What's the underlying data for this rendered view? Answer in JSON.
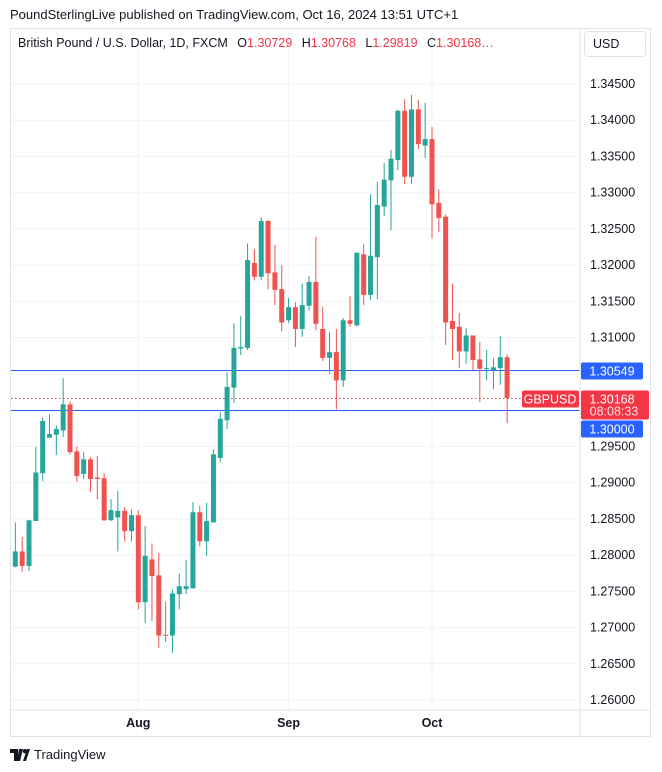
{
  "publisher_line": "PoundSterlingLive published on TradingView.com, Oct 16, 2024 13:51 UTC+1",
  "legend": {
    "title": "British Pound / U.S. Dollar, 1D, FXCM",
    "o_label": "O",
    "o_value": "1.30729",
    "h_label": "H",
    "h_value": "1.30768",
    "l_label": "L",
    "l_value": "1.29819",
    "c_label": "C",
    "c_value": "1.30168…"
  },
  "currency_button": "USD",
  "brand": "TradingView",
  "colors": {
    "up": "#26a69a",
    "down": "#ef5350",
    "line": "#2962ff",
    "grid": "#f0f3fa",
    "text": "#131722"
  },
  "chart_data": {
    "type": "candlestick",
    "symbol": "GBPUSD",
    "interval": "1D",
    "ylim": [
      1.2575,
      1.3485
    ],
    "grid": true,
    "y_ticks": [
      "1.34500",
      "1.34000",
      "1.33500",
      "1.33000",
      "1.32500",
      "1.32000",
      "1.31500",
      "1.31000",
      "1.29500",
      "1.29000",
      "1.28500",
      "1.28000",
      "1.27500",
      "1.27000",
      "1.26500",
      "1.26000"
    ],
    "x_ticks": [
      {
        "label": "Aug",
        "date": "2024-08-01"
      },
      {
        "label": "Sep",
        "date": "2024-09-02"
      },
      {
        "label": "Oct",
        "date": "2024-10-01"
      }
    ],
    "horizontal_lines": [
      {
        "price": 1.30549,
        "label": "1.30549",
        "color": "#2962ff"
      },
      {
        "price": 1.3,
        "label": "1.30000",
        "color": "#2962ff"
      }
    ],
    "last_price": {
      "price": 1.30168,
      "label": "1.30168",
      "countdown": "08:08:33",
      "symbol_tag": "GBPUSD",
      "color": "#f23645"
    },
    "candles": [
      {
        "date": "2024-07-05",
        "o": 1.2757,
        "h": 1.2811,
        "l": 1.2757,
        "c": 1.2811
      },
      {
        "date": "2024-07-08",
        "o": 1.2784,
        "h": 1.2845,
        "l": 1.2783,
        "c": 1.2805
      },
      {
        "date": "2024-07-09",
        "o": 1.2805,
        "h": 1.2825,
        "l": 1.2777,
        "c": 1.2785
      },
      {
        "date": "2024-07-10",
        "o": 1.2785,
        "h": 1.2848,
        "l": 1.2778,
        "c": 1.2848
      },
      {
        "date": "2024-07-11",
        "o": 1.2847,
        "h": 1.2949,
        "l": 1.2847,
        "c": 1.2914
      },
      {
        "date": "2024-07-12",
        "o": 1.2913,
        "h": 1.299,
        "l": 1.2902,
        "c": 1.2985
      },
      {
        "date": "2024-07-15",
        "o": 1.2962,
        "h": 1.2994,
        "l": 1.2962,
        "c": 1.2967
      },
      {
        "date": "2024-07-16",
        "o": 1.2966,
        "h": 1.2979,
        "l": 1.2938,
        "c": 1.2974
      },
      {
        "date": "2024-07-17",
        "o": 1.2972,
        "h": 1.3044,
        "l": 1.2963,
        "c": 1.3008
      },
      {
        "date": "2024-07-18",
        "o": 1.3008,
        "h": 1.3012,
        "l": 1.2939,
        "c": 1.2942
      },
      {
        "date": "2024-07-19",
        "o": 1.2943,
        "h": 1.295,
        "l": 1.2901,
        "c": 1.2909
      },
      {
        "date": "2024-07-22",
        "o": 1.2912,
        "h": 1.2942,
        "l": 1.2905,
        "c": 1.2932
      },
      {
        "date": "2024-07-23",
        "o": 1.2932,
        "h": 1.2935,
        "l": 1.2887,
        "c": 1.2905
      },
      {
        "date": "2024-07-24",
        "o": 1.2907,
        "h": 1.2937,
        "l": 1.2877,
        "c": 1.2905
      },
      {
        "date": "2024-07-25",
        "o": 1.2906,
        "h": 1.2913,
        "l": 1.2847,
        "c": 1.2848
      },
      {
        "date": "2024-07-26",
        "o": 1.2848,
        "h": 1.2877,
        "l": 1.2847,
        "c": 1.2862
      },
      {
        "date": "2024-07-29",
        "o": 1.2852,
        "h": 1.2888,
        "l": 1.2805,
        "c": 1.2861
      },
      {
        "date": "2024-07-30",
        "o": 1.2861,
        "h": 1.2866,
        "l": 1.2819,
        "c": 1.2833
      },
      {
        "date": "2024-07-31",
        "o": 1.2833,
        "h": 1.2863,
        "l": 1.2819,
        "c": 1.2855
      },
      {
        "date": "2024-08-01",
        "o": 1.2855,
        "h": 1.2862,
        "l": 1.2725,
        "c": 1.2735
      },
      {
        "date": "2024-08-02",
        "o": 1.2735,
        "h": 1.284,
        "l": 1.2706,
        "c": 1.2799
      },
      {
        "date": "2024-08-05",
        "o": 1.2794,
        "h": 1.2816,
        "l": 1.2709,
        "c": 1.2771
      },
      {
        "date": "2024-08-06",
        "o": 1.2772,
        "h": 1.2803,
        "l": 1.2672,
        "c": 1.2689
      },
      {
        "date": "2024-08-07",
        "o": 1.269,
        "h": 1.2736,
        "l": 1.268,
        "c": 1.2689
      },
      {
        "date": "2024-08-08",
        "o": 1.2689,
        "h": 1.2752,
        "l": 1.2665,
        "c": 1.2747
      },
      {
        "date": "2024-08-09",
        "o": 1.2746,
        "h": 1.2774,
        "l": 1.2725,
        "c": 1.2757
      },
      {
        "date": "2024-08-12",
        "o": 1.2753,
        "h": 1.2793,
        "l": 1.2746,
        "c": 1.2757
      },
      {
        "date": "2024-08-13",
        "o": 1.2754,
        "h": 1.2873,
        "l": 1.2754,
        "c": 1.2859
      },
      {
        "date": "2024-08-14",
        "o": 1.2859,
        "h": 1.2868,
        "l": 1.2812,
        "c": 1.2819
      },
      {
        "date": "2024-08-15",
        "o": 1.2819,
        "h": 1.2872,
        "l": 1.2799,
        "c": 1.2847
      },
      {
        "date": "2024-08-16",
        "o": 1.2845,
        "h": 1.2946,
        "l": 1.2845,
        "c": 1.2939
      },
      {
        "date": "2024-08-19",
        "o": 1.2934,
        "h": 1.2997,
        "l": 1.2928,
        "c": 1.2988
      },
      {
        "date": "2024-08-20",
        "o": 1.2986,
        "h": 1.3052,
        "l": 1.2974,
        "c": 1.3032
      },
      {
        "date": "2024-08-21",
        "o": 1.3031,
        "h": 1.312,
        "l": 1.301,
        "c": 1.3086
      },
      {
        "date": "2024-08-22",
        "o": 1.3085,
        "h": 1.313,
        "l": 1.3076,
        "c": 1.3087
      },
      {
        "date": "2024-08-23",
        "o": 1.3086,
        "h": 1.323,
        "l": 1.3083,
        "c": 1.3207
      },
      {
        "date": "2024-08-26",
        "o": 1.3203,
        "h": 1.3222,
        "l": 1.3179,
        "c": 1.3184
      },
      {
        "date": "2024-08-27",
        "o": 1.3184,
        "h": 1.3266,
        "l": 1.3179,
        "c": 1.3261
      },
      {
        "date": "2024-08-28",
        "o": 1.3261,
        "h": 1.3262,
        "l": 1.3167,
        "c": 1.3189
      },
      {
        "date": "2024-08-29",
        "o": 1.319,
        "h": 1.3228,
        "l": 1.3145,
        "c": 1.3166
      },
      {
        "date": "2024-08-30",
        "o": 1.3167,
        "h": 1.32,
        "l": 1.3109,
        "c": 1.3121
      },
      {
        "date": "2024-09-02",
        "o": 1.3124,
        "h": 1.3155,
        "l": 1.312,
        "c": 1.3142
      },
      {
        "date": "2024-09-03",
        "o": 1.3142,
        "h": 1.3149,
        "l": 1.3087,
        "c": 1.3112
      },
      {
        "date": "2024-09-04",
        "o": 1.3112,
        "h": 1.3175,
        "l": 1.3101,
        "c": 1.3145
      },
      {
        "date": "2024-09-05",
        "o": 1.3144,
        "h": 1.3185,
        "l": 1.3137,
        "c": 1.3177
      },
      {
        "date": "2024-09-06",
        "o": 1.3177,
        "h": 1.3239,
        "l": 1.311,
        "c": 1.3119
      },
      {
        "date": "2024-09-09",
        "o": 1.3112,
        "h": 1.3143,
        "l": 1.3068,
        "c": 1.3072
      },
      {
        "date": "2024-09-10",
        "o": 1.3072,
        "h": 1.3108,
        "l": 1.305,
        "c": 1.308
      },
      {
        "date": "2024-09-11",
        "o": 1.308,
        "h": 1.3112,
        "l": 1.3001,
        "c": 1.3041
      },
      {
        "date": "2024-09-12",
        "o": 1.3041,
        "h": 1.3127,
        "l": 1.3032,
        "c": 1.3124
      },
      {
        "date": "2024-09-13",
        "o": 1.3124,
        "h": 1.3157,
        "l": 1.3115,
        "c": 1.3119
      },
      {
        "date": "2024-09-16",
        "o": 1.3117,
        "h": 1.3218,
        "l": 1.3115,
        "c": 1.3217
      },
      {
        "date": "2024-09-17",
        "o": 1.3215,
        "h": 1.3229,
        "l": 1.3145,
        "c": 1.3159
      },
      {
        "date": "2024-09-18",
        "o": 1.3159,
        "h": 1.3298,
        "l": 1.3152,
        "c": 1.3213
      },
      {
        "date": "2024-09-19",
        "o": 1.3211,
        "h": 1.3315,
        "l": 1.3153,
        "c": 1.3283
      },
      {
        "date": "2024-09-20",
        "o": 1.3281,
        "h": 1.3341,
        "l": 1.3268,
        "c": 1.3318
      },
      {
        "date": "2024-09-23",
        "o": 1.3317,
        "h": 1.3359,
        "l": 1.3248,
        "c": 1.3347
      },
      {
        "date": "2024-09-24",
        "o": 1.3345,
        "h": 1.3415,
        "l": 1.3331,
        "c": 1.3413
      },
      {
        "date": "2024-09-25",
        "o": 1.3413,
        "h": 1.3429,
        "l": 1.3312,
        "c": 1.3322
      },
      {
        "date": "2024-09-26",
        "o": 1.3322,
        "h": 1.3435,
        "l": 1.3312,
        "c": 1.3415
      },
      {
        "date": "2024-09-27",
        "o": 1.3415,
        "h": 1.3428,
        "l": 1.336,
        "c": 1.3367
      },
      {
        "date": "2024-09-30",
        "o": 1.3365,
        "h": 1.3424,
        "l": 1.3348,
        "c": 1.3374
      },
      {
        "date": "2024-10-01",
        "o": 1.3374,
        "h": 1.3391,
        "l": 1.3237,
        "c": 1.3284
      },
      {
        "date": "2024-10-02",
        "o": 1.3286,
        "h": 1.3305,
        "l": 1.3246,
        "c": 1.3265
      },
      {
        "date": "2024-10-03",
        "o": 1.3267,
        "h": 1.327,
        "l": 1.309,
        "c": 1.3121
      },
      {
        "date": "2024-10-04",
        "o": 1.3123,
        "h": 1.3175,
        "l": 1.3069,
        "c": 1.3112
      },
      {
        "date": "2024-10-07",
        "o": 1.3115,
        "h": 1.3134,
        "l": 1.3058,
        "c": 1.3081
      },
      {
        "date": "2024-10-08",
        "o": 1.3081,
        "h": 1.3113,
        "l": 1.3064,
        "c": 1.3103
      },
      {
        "date": "2024-10-09",
        "o": 1.3103,
        "h": 1.3103,
        "l": 1.3055,
        "c": 1.3069
      },
      {
        "date": "2024-10-10",
        "o": 1.307,
        "h": 1.3094,
        "l": 1.3011,
        "c": 1.3057
      },
      {
        "date": "2024-10-11",
        "o": 1.3057,
        "h": 1.3083,
        "l": 1.3041,
        "c": 1.3058
      },
      {
        "date": "2024-10-14",
        "o": 1.3055,
        "h": 1.3072,
        "l": 1.3029,
        "c": 1.3059
      },
      {
        "date": "2024-10-15",
        "o": 1.3058,
        "h": 1.3102,
        "l": 1.3035,
        "c": 1.3073
      },
      {
        "date": "2024-10-16",
        "o": 1.30729,
        "h": 1.30768,
        "l": 1.29819,
        "c": 1.30168
      }
    ]
  }
}
